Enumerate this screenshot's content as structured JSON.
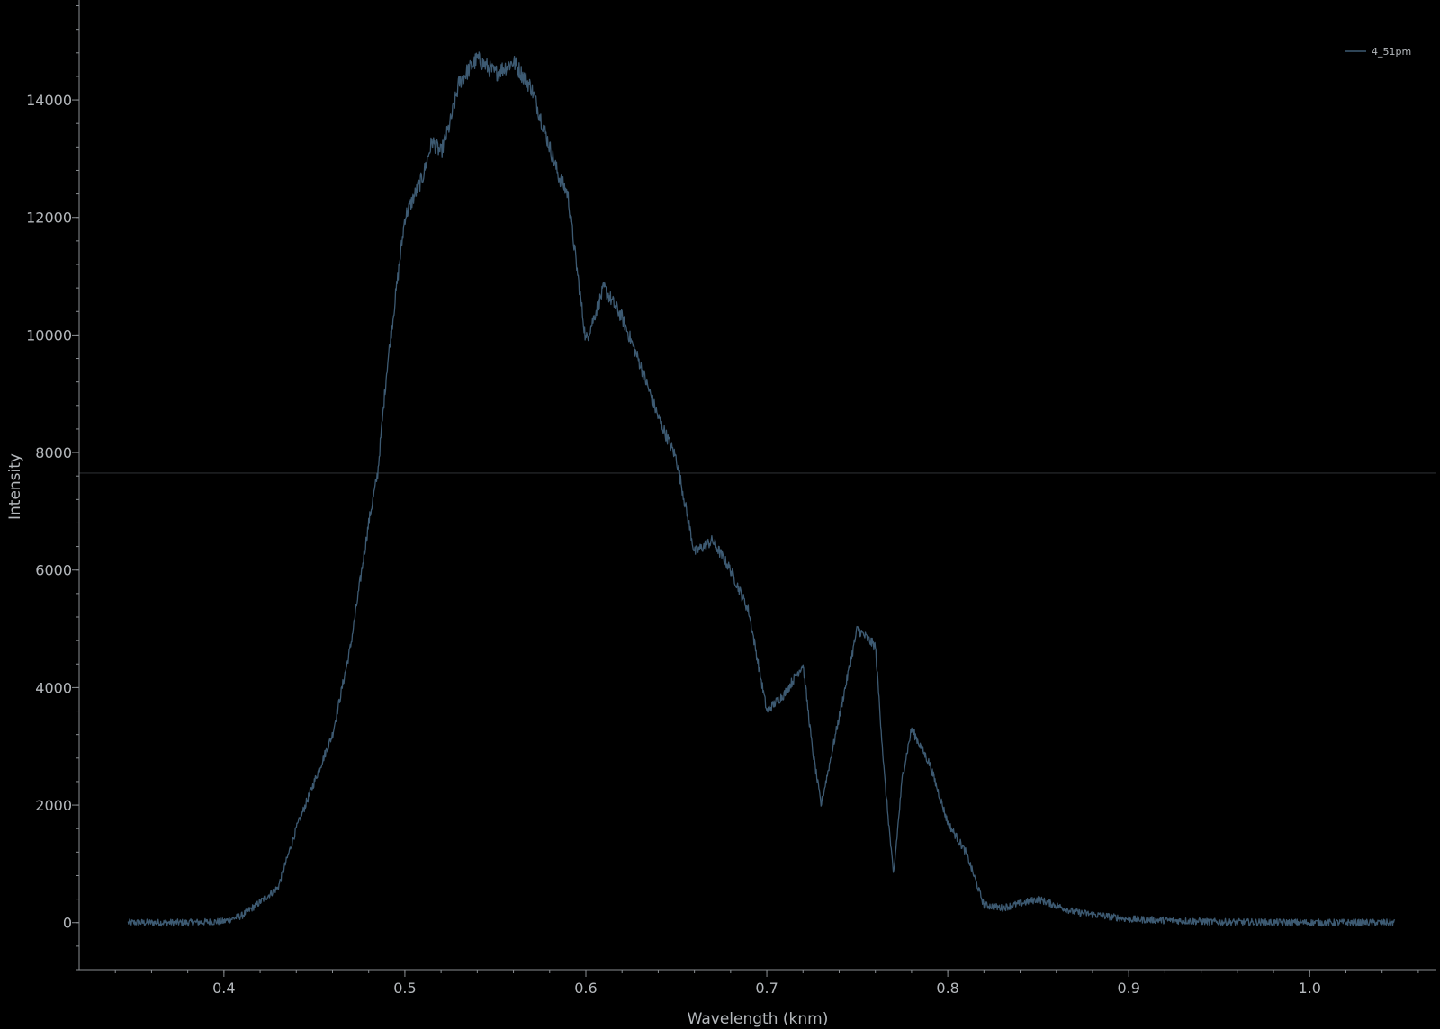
{
  "chart_data": {
    "type": "line",
    "xlabel": "Wavelength (knm)",
    "ylabel": "Intensity",
    "xlim": [
      0.32,
      1.07
    ],
    "ylim": [
      -800,
      15700
    ],
    "x_ticks": [
      0.4,
      0.5,
      0.6,
      0.7,
      0.8,
      0.9,
      1.0
    ],
    "x_tick_labels": [
      "0.4",
      "0.5",
      "0.6",
      "0.7",
      "0.8",
      "0.9",
      "1.0"
    ],
    "y_ticks": [
      0,
      2000,
      4000,
      6000,
      8000,
      10000,
      12000,
      14000
    ],
    "y_tick_labels": [
      "0",
      "2000",
      "4000",
      "6000",
      "8000",
      "10000",
      "12000",
      "14000"
    ],
    "grid": false,
    "legend_position": "top-right",
    "horizontal_reference_line": 7650,
    "colors": {
      "background": "#000000",
      "line": "#3d5a72",
      "axis": "#8a8e92",
      "text": "#b4b8bc",
      "reference_line": "#2a2d30"
    },
    "series": [
      {
        "name": "4_51pm",
        "x": [
          0.347,
          0.36,
          0.38,
          0.4,
          0.41,
          0.42,
          0.43,
          0.44,
          0.45,
          0.46,
          0.47,
          0.48,
          0.485,
          0.49,
          0.5,
          0.51,
          0.515,
          0.52,
          0.525,
          0.53,
          0.54,
          0.55,
          0.56,
          0.57,
          0.58,
          0.585,
          0.59,
          0.6,
          0.61,
          0.62,
          0.63,
          0.64,
          0.65,
          0.66,
          0.67,
          0.68,
          0.69,
          0.7,
          0.71,
          0.72,
          0.725,
          0.73,
          0.74,
          0.75,
          0.76,
          0.765,
          0.77,
          0.775,
          0.78,
          0.79,
          0.8,
          0.81,
          0.82,
          0.83,
          0.85,
          0.87,
          0.9,
          0.95,
          1.0,
          1.047
        ],
        "y": [
          0,
          0,
          0,
          20,
          120,
          350,
          600,
          1600,
          2400,
          3200,
          4700,
          6800,
          7650,
          9400,
          12000,
          12700,
          13300,
          13100,
          13600,
          14300,
          14700,
          14450,
          14650,
          14200,
          13200,
          12700,
          12400,
          9900,
          10800,
          10300,
          9500,
          8600,
          7900,
          6300,
          6500,
          6000,
          5300,
          3600,
          3900,
          4400,
          3000,
          2000,
          3500,
          5000,
          4700,
          2500,
          800,
          2500,
          3300,
          2700,
          1700,
          1200,
          300,
          250,
          400,
          180,
          60,
          10,
          0,
          0
        ]
      }
    ]
  }
}
